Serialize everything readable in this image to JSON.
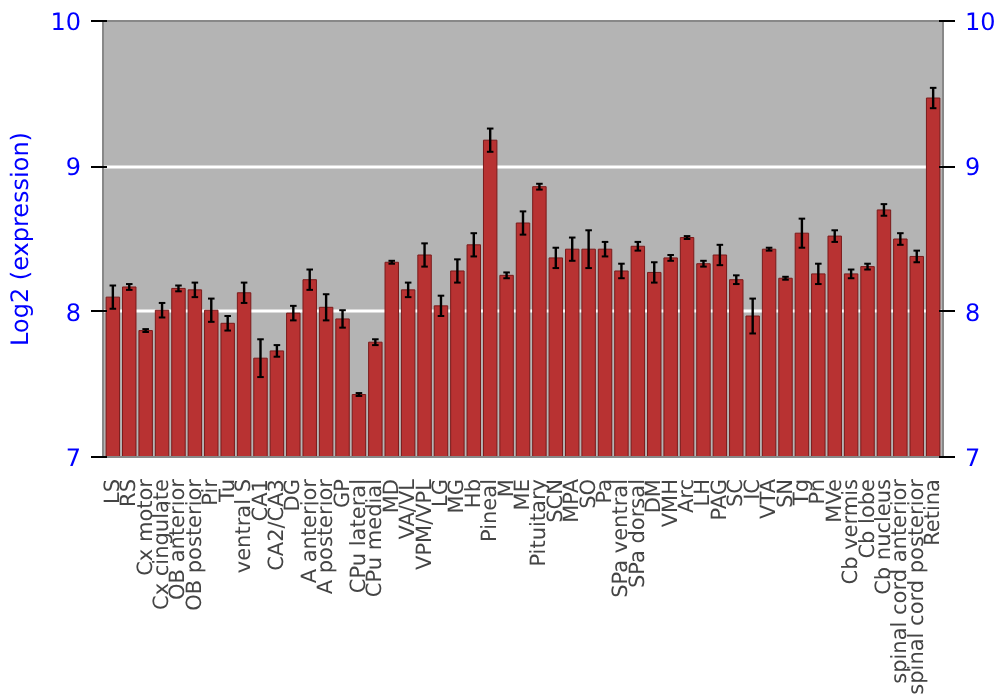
{
  "chart_data": {
    "type": "bar",
    "ylabel": "Log2 (expression)",
    "categories": [
      "LS",
      "RS",
      "Cx motor",
      "Cx cingulate",
      "OB anterior",
      "OB posterior",
      "Pir",
      "Tu",
      "ventral S",
      "CA1",
      "CA2/CA3",
      "DG",
      "A anterior",
      "A posterior",
      "GP",
      "CPu lateral",
      "CPu medial",
      "MD",
      "VA/VL",
      "VPM/VPL",
      "LG",
      "MG",
      "Hb",
      "Pineal",
      "M",
      "ME",
      "Pituitary",
      "SCN",
      "MPA",
      "SO",
      "Pa",
      "SPa ventral",
      "SPa dorsal",
      "DM",
      "VMH",
      "Arc",
      "LH",
      "PAG",
      "SC",
      "IC",
      "VTA",
      "SN",
      "Tg",
      "Pn",
      "MVe",
      "Cb vermis",
      "Cb lobe",
      "Cb nucleus",
      "spinal cord anterior",
      "spinal cord posterior",
      "Retina"
    ],
    "values": [
      8.1,
      8.17,
      7.87,
      8.01,
      8.16,
      8.15,
      8.01,
      7.92,
      8.13,
      7.68,
      7.73,
      7.99,
      8.22,
      8.03,
      7.95,
      7.43,
      7.79,
      8.34,
      8.15,
      8.39,
      8.04,
      8.28,
      8.46,
      9.18,
      8.25,
      8.61,
      8.86,
      8.37,
      8.43,
      8.43,
      8.43,
      8.28,
      8.45,
      8.27,
      8.37,
      8.51,
      8.33,
      8.39,
      8.22,
      7.97,
      8.43,
      8.23,
      8.54,
      8.26,
      8.52,
      8.26,
      8.31,
      8.7,
      8.5,
      8.38,
      9.47
    ],
    "errors": [
      0.08,
      0.02,
      0.01,
      0.05,
      0.02,
      0.05,
      0.08,
      0.05,
      0.07,
      0.13,
      0.04,
      0.05,
      0.07,
      0.09,
      0.06,
      0.01,
      0.02,
      0.01,
      0.05,
      0.08,
      0.07,
      0.08,
      0.08,
      0.08,
      0.02,
      0.08,
      0.02,
      0.07,
      0.08,
      0.13,
      0.05,
      0.05,
      0.03,
      0.07,
      0.02,
      0.01,
      0.02,
      0.07,
      0.03,
      0.12,
      0.01,
      0.01,
      0.1,
      0.07,
      0.04,
      0.03,
      0.02,
      0.04,
      0.04,
      0.04,
      0.07
    ],
    "color": "#b83232",
    "ylim": [
      7,
      10
    ],
    "yticks": [
      7,
      8,
      9,
      10
    ],
    "y2lim": [
      7,
      10
    ],
    "y2ticks": [
      7,
      8,
      9,
      10
    ],
    "grid": "y"
  }
}
